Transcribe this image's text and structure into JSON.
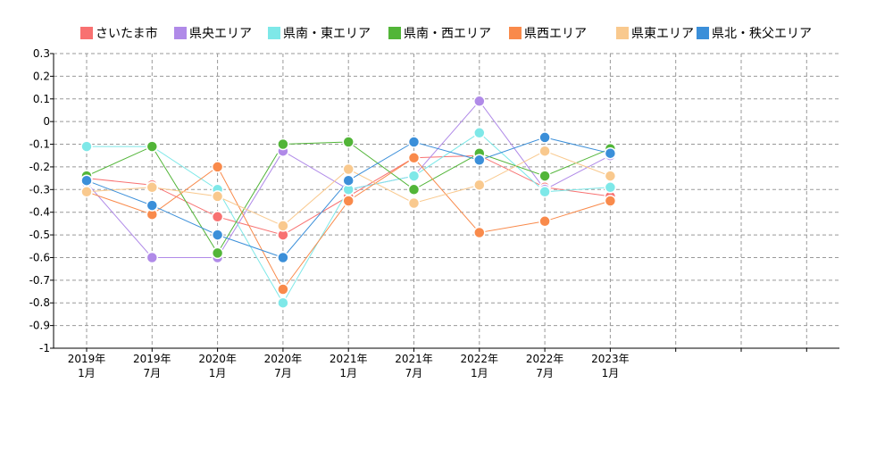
{
  "chart_data": {
    "type": "line",
    "x": [
      "2019年 1月",
      "2019年 7月",
      "2020年 1月",
      "2020年 7月",
      "2021年 1月",
      "2021年 7月",
      "2022年 1月",
      "2022年 7月",
      "2023年 1月"
    ],
    "x_tick_labels": [
      [
        "2019年",
        "1月"
      ],
      [
        "2019年",
        "7月"
      ],
      [
        "2020年",
        "1月"
      ],
      [
        "2020年",
        "7月"
      ],
      [
        "2021年",
        "1月"
      ],
      [
        "2021年",
        "7月"
      ],
      [
        "2022年",
        "1月"
      ],
      [
        "2022年",
        "7月"
      ],
      [
        "2023年",
        "1月"
      ],
      [
        "",
        ""
      ],
      [
        "",
        ""
      ],
      [
        "",
        ""
      ]
    ],
    "y_ticks": [
      0.3,
      0.2,
      0.1,
      0,
      -0.1,
      -0.2,
      -0.3,
      -0.4,
      -0.5,
      -0.6,
      -0.7,
      -0.8,
      -0.9,
      -1
    ],
    "y_tick_labels": [
      "0.3",
      "0.2",
      "0.1",
      "0",
      "-0.1",
      "-0.2",
      "-0.3",
      "-0.4",
      "-0.5",
      "-0.6",
      "-0.7",
      "-0.8",
      "-0.9",
      "-1"
    ],
    "ylim": [
      -1,
      0.3
    ],
    "grid": true,
    "legend_position": "top",
    "series": [
      {
        "name": "さいたま市",
        "color": "#f87171",
        "values": [
          -0.25,
          -0.28,
          -0.42,
          -0.5,
          -0.33,
          -0.16,
          -0.15,
          -0.29,
          -0.33
        ]
      },
      {
        "name": "県央エリア",
        "color": "#b08ae8",
        "values": [
          -0.27,
          -0.6,
          -0.6,
          -0.13,
          -0.3,
          -0.24,
          0.09,
          -0.3,
          -0.15
        ]
      },
      {
        "name": "県南・東エリア",
        "color": "#7ee8e8",
        "values": [
          -0.11,
          -0.11,
          -0.3,
          -0.8,
          -0.3,
          -0.24,
          -0.05,
          -0.31,
          -0.29
        ]
      },
      {
        "name": "県南・西エリア",
        "color": "#52b538",
        "values": [
          -0.24,
          -0.11,
          -0.58,
          -0.1,
          -0.09,
          -0.3,
          -0.14,
          -0.24,
          -0.12
        ]
      },
      {
        "name": "県西エリア",
        "color": "#f98a4b",
        "values": [
          -0.31,
          -0.41,
          -0.2,
          -0.74,
          -0.35,
          -0.16,
          -0.49,
          -0.44,
          -0.35
        ]
      },
      {
        "name": "県東エリア",
        "color": "#f9c98e",
        "values": [
          -0.31,
          -0.29,
          -0.33,
          -0.46,
          -0.21,
          -0.36,
          -0.28,
          -0.13,
          -0.24
        ]
      },
      {
        "name": "県北・秩父エリア",
        "color": "#3b8fd9",
        "values": [
          -0.26,
          -0.37,
          -0.5,
          -0.6,
          -0.26,
          -0.09,
          -0.17,
          -0.07,
          -0.14
        ]
      }
    ]
  }
}
